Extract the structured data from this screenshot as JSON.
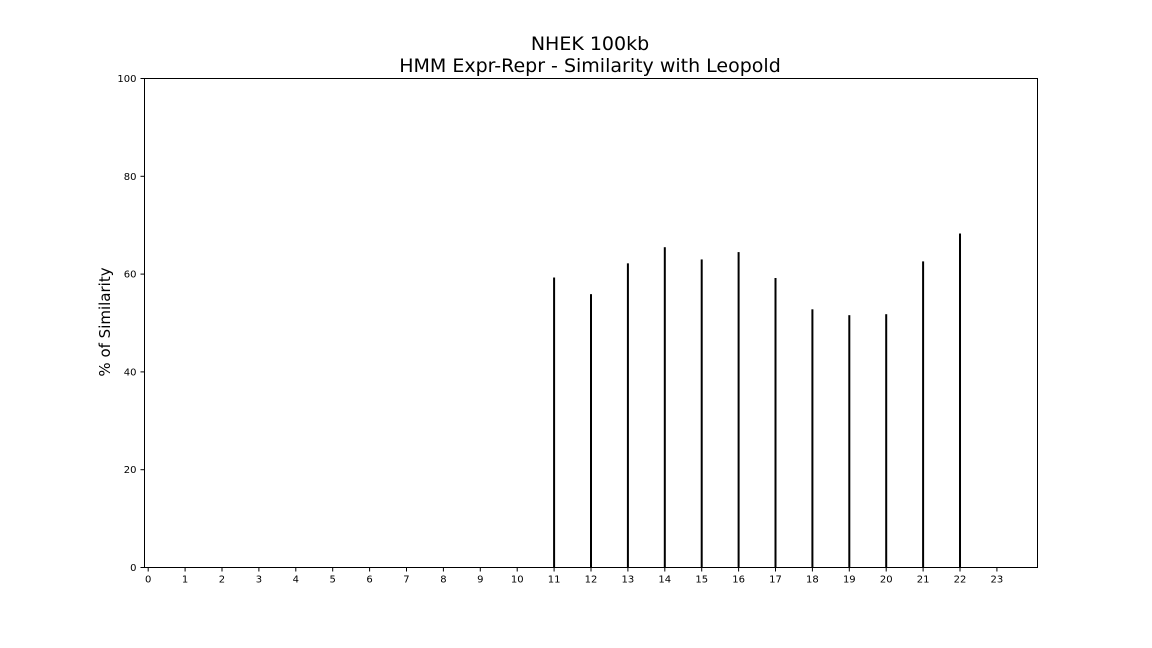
{
  "chart_data": {
    "type": "bar",
    "title": [
      "NHEK 100kb",
      "HMM Expr-Repr - Similarity with Leopold"
    ],
    "xlabel": "",
    "ylabel": "% of Similarity",
    "ylim": [
      0,
      100
    ],
    "xlim": [
      -0.1,
      24.1
    ],
    "yticks": [
      0,
      20,
      40,
      60,
      80,
      100
    ],
    "xticks": [
      0,
      1,
      2,
      3,
      4,
      5,
      6,
      7,
      8,
      9,
      10,
      11,
      12,
      13,
      14,
      15,
      16,
      17,
      18,
      19,
      20,
      21,
      22,
      23
    ],
    "categories": [
      11,
      12,
      13,
      14,
      15,
      16,
      17,
      18,
      19,
      20,
      21,
      22
    ],
    "values": [
      59.3,
      55.9,
      62.2,
      65.5,
      63.0,
      64.5,
      59.2,
      52.8,
      51.6,
      51.8,
      62.6,
      68.3
    ],
    "bar_color": "#000000",
    "grid": false,
    "legend": "none"
  }
}
